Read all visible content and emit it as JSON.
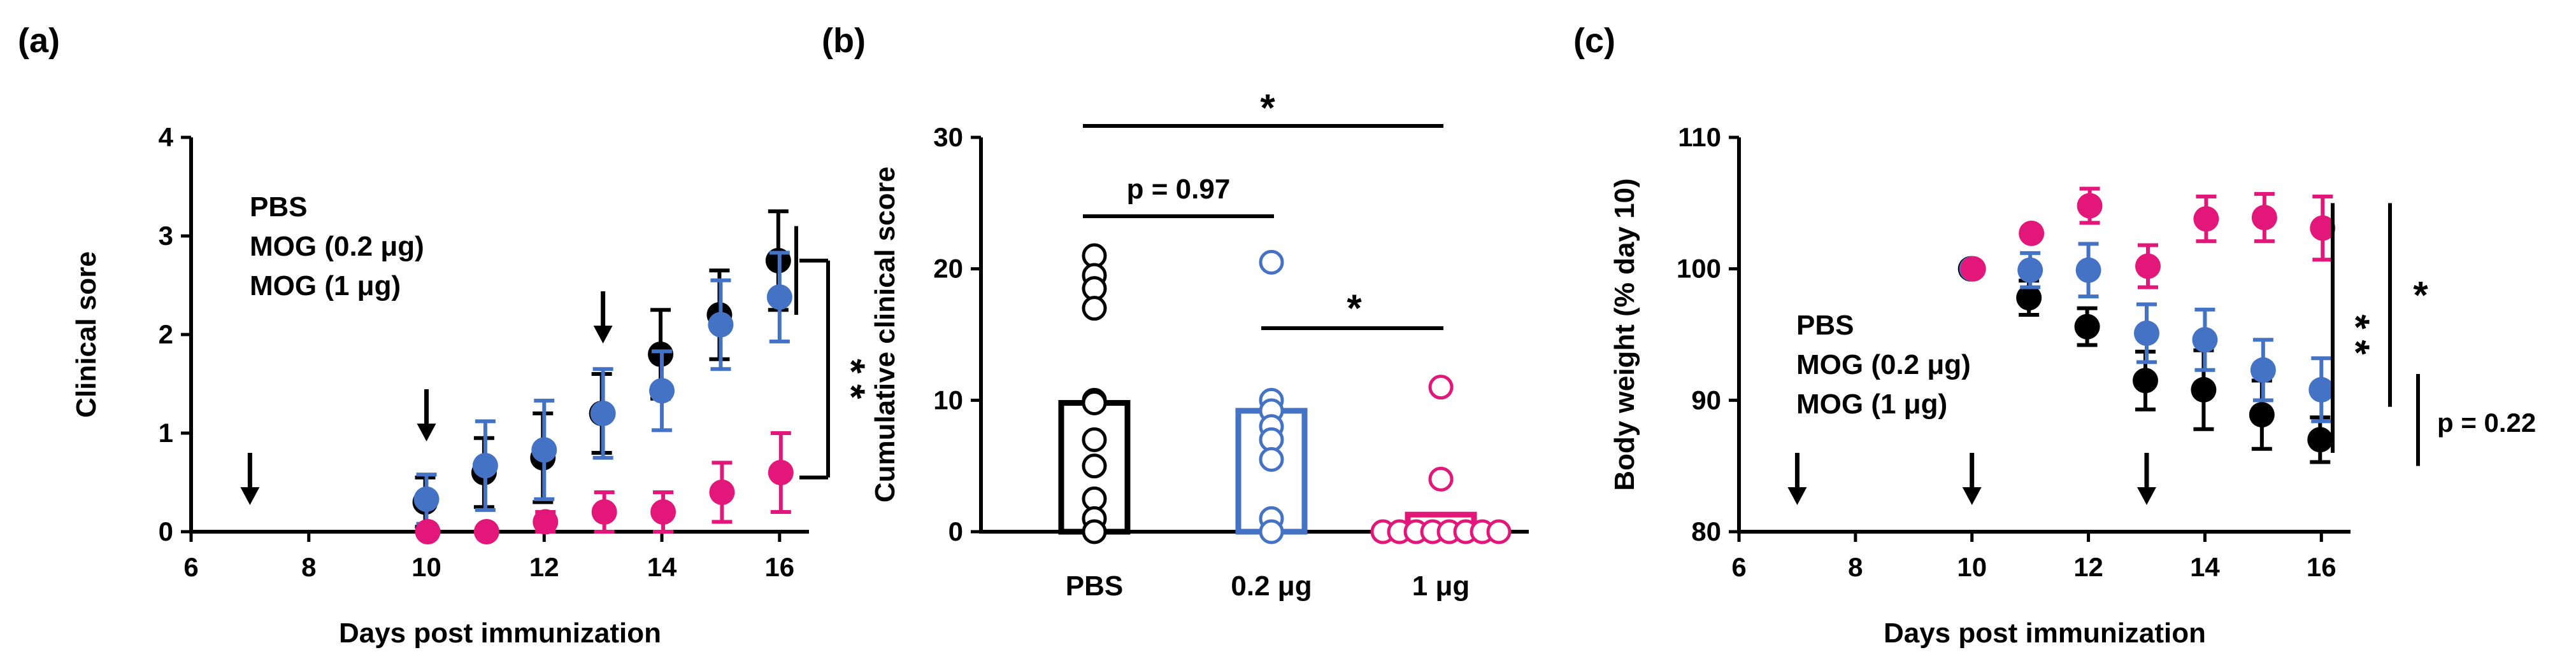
{
  "colors": {
    "pbs": "#000000",
    "mog02": "#4472C4",
    "mog1": "#E3177A"
  },
  "chart_data": [
    {
      "type": "scatter",
      "panel_label": "(a)",
      "xlabel": "Days post immunization",
      "ylabel": "Clinical sore",
      "xlim": [
        6,
        16.5
      ],
      "ylim": [
        0,
        4
      ],
      "xticks": [
        6,
        8,
        10,
        12,
        14,
        16
      ],
      "yticks": [
        0,
        1,
        2,
        3,
        4
      ],
      "arrows_x": [
        7,
        10,
        13
      ],
      "legend": [
        {
          "label": "PBS",
          "color": "#000000"
        },
        {
          "label": "MOG  (0.2 μg)",
          "color": "#4472C4"
        },
        {
          "label": "MOG  (1  μg)",
          "color": "#E3177A"
        }
      ],
      "series": [
        {
          "name": "PBS",
          "color": "#000000",
          "x": [
            10,
            11,
            12,
            13,
            14,
            15,
            16
          ],
          "y": [
            0.3,
            0.6,
            0.75,
            1.2,
            1.8,
            2.2,
            2.75
          ],
          "err": [
            0.25,
            0.35,
            0.45,
            0.4,
            0.45,
            0.45,
            0.5
          ]
        },
        {
          "name": "MOG  (0.2 μg)",
          "color": "#4472C4",
          "x": [
            10,
            11,
            12,
            13,
            14,
            15,
            16
          ],
          "y": [
            0.33,
            0.67,
            0.83,
            1.2,
            1.43,
            2.1,
            2.38
          ],
          "err": [
            0.25,
            0.45,
            0.5,
            0.45,
            0.4,
            0.45,
            0.45
          ]
        },
        {
          "name": "MOG  (1  μg)",
          "color": "#E3177A",
          "x": [
            10,
            11,
            12,
            13,
            14,
            15,
            16
          ],
          "y": [
            0,
            0,
            0.1,
            0.2,
            0.2,
            0.4,
            0.6
          ],
          "err": [
            0,
            0,
            0.1,
            0.2,
            0.2,
            0.3,
            0.4
          ]
        }
      ],
      "significance": "* *"
    },
    {
      "type": "bar",
      "panel_label": "(b)",
      "ylabel": "Cumulative clinical score",
      "ylim": [
        0,
        30
      ],
      "yticks": [
        0,
        10,
        20,
        30
      ],
      "categories": [
        "PBS",
        "0.2 μg",
        "1 μg"
      ],
      "category_colors": [
        "#000000",
        "#4472C4",
        "#E3177A"
      ],
      "values": [
        9.8,
        9.2,
        1.3
      ],
      "points": [
        [
          21,
          19.5,
          18.5,
          17,
          10,
          9.8,
          7,
          5,
          2.5,
          1,
          0
        ],
        [
          20.5,
          10,
          9.2,
          8,
          7,
          5.5,
          1,
          0
        ],
        [
          11,
          4,
          0,
          0,
          0,
          0,
          0,
          0,
          0,
          0
        ]
      ],
      "comparisons": [
        {
          "pair": [
            0,
            2
          ],
          "label": "*"
        },
        {
          "pair": [
            0,
            1
          ],
          "label": "p = 0.97"
        },
        {
          "pair": [
            1,
            2
          ],
          "label": "*"
        }
      ]
    },
    {
      "type": "scatter",
      "panel_label": "(c)",
      "xlabel": "Days post immunization",
      "ylabel": "Body weight (% day 10)",
      "xlim": [
        6,
        16.5
      ],
      "ylim": [
        80,
        110
      ],
      "xticks": [
        6,
        8,
        10,
        12,
        14,
        16
      ],
      "yticks": [
        80,
        90,
        100,
        110
      ],
      "arrows_x": [
        7,
        10,
        13
      ],
      "legend": [
        {
          "label": "PBS",
          "color": "#000000"
        },
        {
          "label": "MOG  (0.2 μg)",
          "color": "#4472C4"
        },
        {
          "label": "MOG (1  μg)",
          "color": "#E3177A"
        }
      ],
      "series": [
        {
          "name": "PBS",
          "color": "#000000",
          "x": [
            10,
            11,
            12,
            13,
            14,
            15,
            16
          ],
          "y": [
            100,
            97.8,
            95.6,
            91.5,
            90.8,
            88.9,
            87
          ],
          "err": [
            0,
            1.3,
            1.4,
            2.2,
            3.0,
            2.6,
            1.7
          ]
        },
        {
          "name": "MOG  (0.2 μg)",
          "color": "#4472C4",
          "x": [
            10,
            11,
            12,
            13,
            14,
            15,
            16
          ],
          "y": [
            100,
            99.9,
            99.9,
            95.1,
            94.6,
            92.3,
            90.8
          ],
          "err": [
            0,
            1.3,
            2.0,
            2.2,
            2.3,
            2.3,
            2.4
          ]
        },
        {
          "name": "MOG (1  μg)",
          "color": "#E3177A",
          "x": [
            10,
            11,
            12,
            13,
            14,
            15,
            16
          ],
          "y": [
            100,
            102.7,
            104.8,
            100.2,
            103.8,
            103.9,
            103.1
          ],
          "err": [
            0,
            0,
            1.3,
            1.6,
            1.7,
            1.8,
            2.4
          ]
        }
      ],
      "significance": [
        {
          "label": "* *"
        },
        {
          "label": "*"
        },
        {
          "label": "p = 0.22"
        }
      ]
    }
  ]
}
